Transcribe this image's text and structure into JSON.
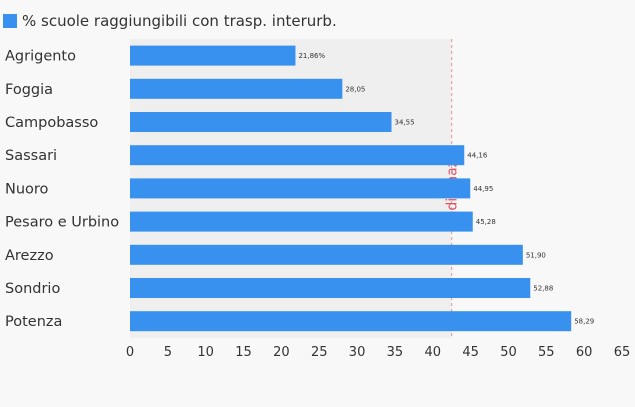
{
  "chart_data": {
    "type": "bar",
    "orientation": "horizontal",
    "categories": [
      "Agrigento",
      "Foggia",
      "Campobasso",
      "Sassari",
      "Nuoro",
      "Pesaro e Urbino",
      "Arezzo",
      "Sondrio",
      "Potenza"
    ],
    "series": [
      {
        "name": "% scuole raggiungibili con trasp. interurb.",
        "values": [
          21.86,
          28.05,
          34.55,
          44.16,
          44.95,
          45.28,
          51.9,
          52.88,
          58.29
        ],
        "value_labels": [
          "21,86%",
          "28,05",
          "34,55",
          "44,16",
          "44,95",
          "45,28",
          "51,90",
          "52,88",
          "58,29"
        ],
        "color": "#3891ee"
      }
    ],
    "xlim": [
      0,
      65
    ],
    "x_ticks": [
      "0",
      "5",
      "10",
      "15",
      "20",
      "25",
      "30",
      "35",
      "40",
      "45",
      "50",
      "55",
      "60",
      "65"
    ],
    "reference_line": {
      "value": 42.5,
      "label": "Media naz.",
      "color": "#e05060"
    },
    "legend_position": "top-left",
    "grid": false
  },
  "colors": {
    "bar": "#3891ee",
    "plot_band": "#efefef",
    "background": "#f8f8f8",
    "text": "#333333",
    "reference": "#e05060"
  }
}
